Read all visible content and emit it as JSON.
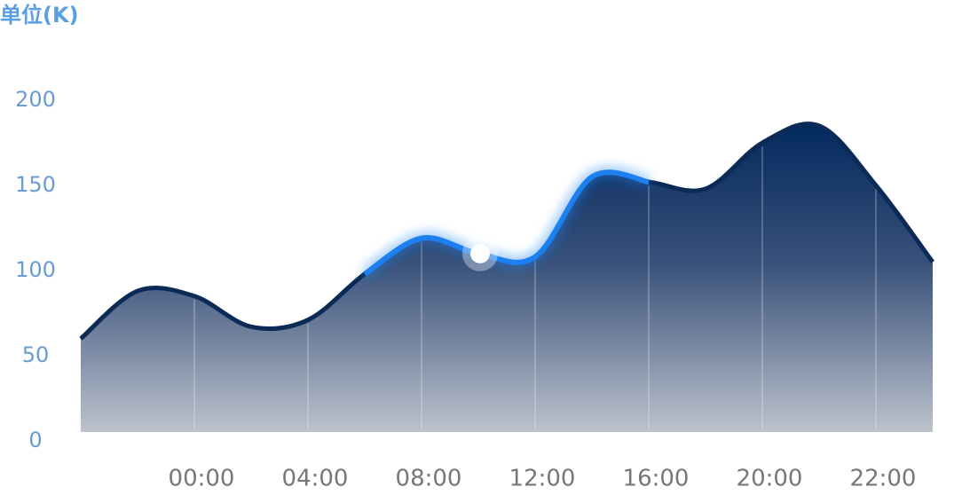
{
  "chart_data": {
    "type": "area",
    "title": "单位(K)",
    "categories": [
      null,
      null,
      "00:00",
      null,
      "04:00",
      null,
      "08:00",
      null,
      "12:00",
      null,
      "16:00",
      null,
      "20:00",
      null,
      "22:00",
      null
    ],
    "series": [
      {
        "color": "#0b2a55",
        "values": [
          60,
          88,
          85,
          67,
          71,
          98,
          119,
          110,
          108,
          155,
          152,
          148,
          175,
          185,
          150,
          105
        ]
      }
    ],
    "highlight_color": "#1a80f0",
    "ylim": [
      0,
      200
    ],
    "yticks": [
      0,
      50,
      100,
      150,
      200
    ]
  }
}
